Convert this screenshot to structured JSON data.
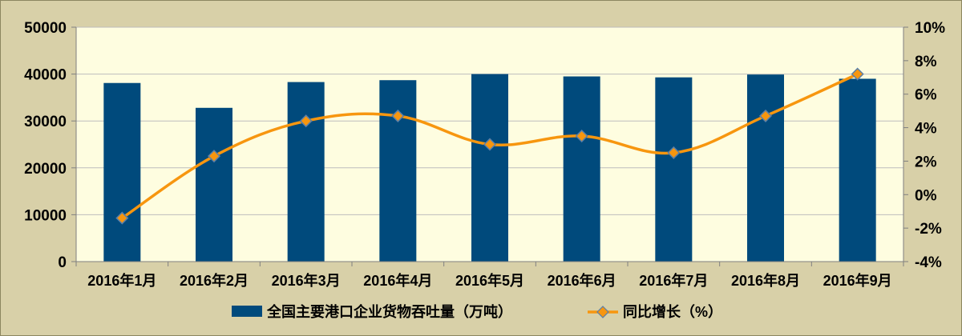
{
  "chart_data": {
    "type": "bar+line",
    "categories": [
      "2016年1月",
      "2016年2月",
      "2016年3月",
      "2016年4月",
      "2016年5月",
      "2016年6月",
      "2016年7月",
      "2016年8月",
      "2016年9月"
    ],
    "series": [
      {
        "name": "全国主要港口企业货物吞吐量（万吨）",
        "type": "bar",
        "axis": "left",
        "color": "#004a7c",
        "values": [
          38100,
          32800,
          38300,
          38700,
          40000,
          39500,
          39300,
          39900,
          39000
        ]
      },
      {
        "name": "同比增长（%）",
        "type": "line",
        "axis": "right",
        "color": "#f7960f",
        "marker_color": "#f7960f",
        "values": [
          -1.4,
          2.3,
          4.4,
          4.7,
          3.0,
          3.5,
          2.5,
          4.7,
          7.2
        ]
      }
    ],
    "y_left": {
      "min": 0,
      "max": 50000,
      "ticks": [
        "0",
        "10000",
        "20000",
        "30000",
        "40000",
        "50000"
      ]
    },
    "y_right": {
      "min": -4,
      "max": 10,
      "ticks": [
        "-4%",
        "-2%",
        "0%",
        "2%",
        "4%",
        "6%",
        "8%",
        "10%"
      ]
    },
    "grid": "horizontal",
    "legend_position": "bottom",
    "plot_background": "#fefde0"
  }
}
